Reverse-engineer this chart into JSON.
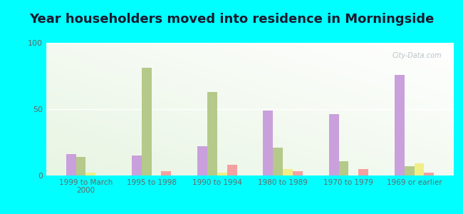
{
  "title": "Year householders moved into residence in Morningside",
  "categories": [
    "1999 to March\n2000",
    "1995 to 1998",
    "1990 to 1994",
    "1980 to 1989",
    "1970 to 1979",
    "1969 or earlier"
  ],
  "series": {
    "White Non-Hispanic": [
      16,
      15,
      22,
      49,
      46,
      76
    ],
    "Black": [
      14,
      81,
      63,
      21,
      11,
      7
    ],
    "Two or More Races": [
      2,
      0,
      2,
      5,
      0,
      9
    ],
    "Hispanic or Latino": [
      0,
      3,
      8,
      3,
      5,
      2
    ]
  },
  "colors": {
    "White Non-Hispanic": "#c9a0dc",
    "Black": "#b5c98a",
    "Two or More Races": "#f0ee88",
    "Hispanic or Latino": "#f5a0a0"
  },
  "ylim": [
    0,
    100
  ],
  "yticks": [
    0,
    50,
    100
  ],
  "background_color": "#00ffff",
  "plot_bg_color": "#e8f5e4",
  "watermark": "City-Data.com",
  "bar_width": 0.15,
  "legend_fontsize": 8,
  "title_fontsize": 13,
  "axis_label_color": "#666666",
  "tick_label_color": "#666666"
}
